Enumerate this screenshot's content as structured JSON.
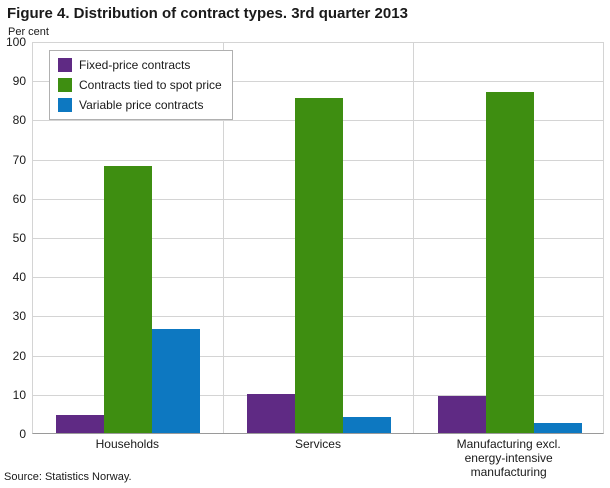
{
  "title": "Figure 4. Distribution of contract types. 3rd quarter 2013",
  "y_axis_title": "Per cent",
  "source": "Source: Statistics Norway.",
  "chart_data": {
    "type": "bar",
    "categories": [
      "Households",
      "Services",
      "Manufacturing excl.\nenergy-intensive\nmanufacturing"
    ],
    "series": [
      {
        "name": "Fixed-price contracts",
        "color": "#5f2a84",
        "values": [
          4.5,
          10,
          9.5
        ]
      },
      {
        "name": "Contracts tied to spot price",
        "color": "#3e8e11",
        "values": [
          68,
          85.5,
          87
        ]
      },
      {
        "name": "Variable price contracts",
        "color": "#0d78c1",
        "values": [
          26.5,
          4,
          2.5
        ]
      }
    ],
    "ylim": [
      0,
      100
    ],
    "ytick_step": 10,
    "grid": true,
    "legend_position": "top-left",
    "colors": {
      "gridline": "#d4d4d4",
      "axis": "#9a9a9a",
      "text": "#1a1a1a"
    }
  }
}
